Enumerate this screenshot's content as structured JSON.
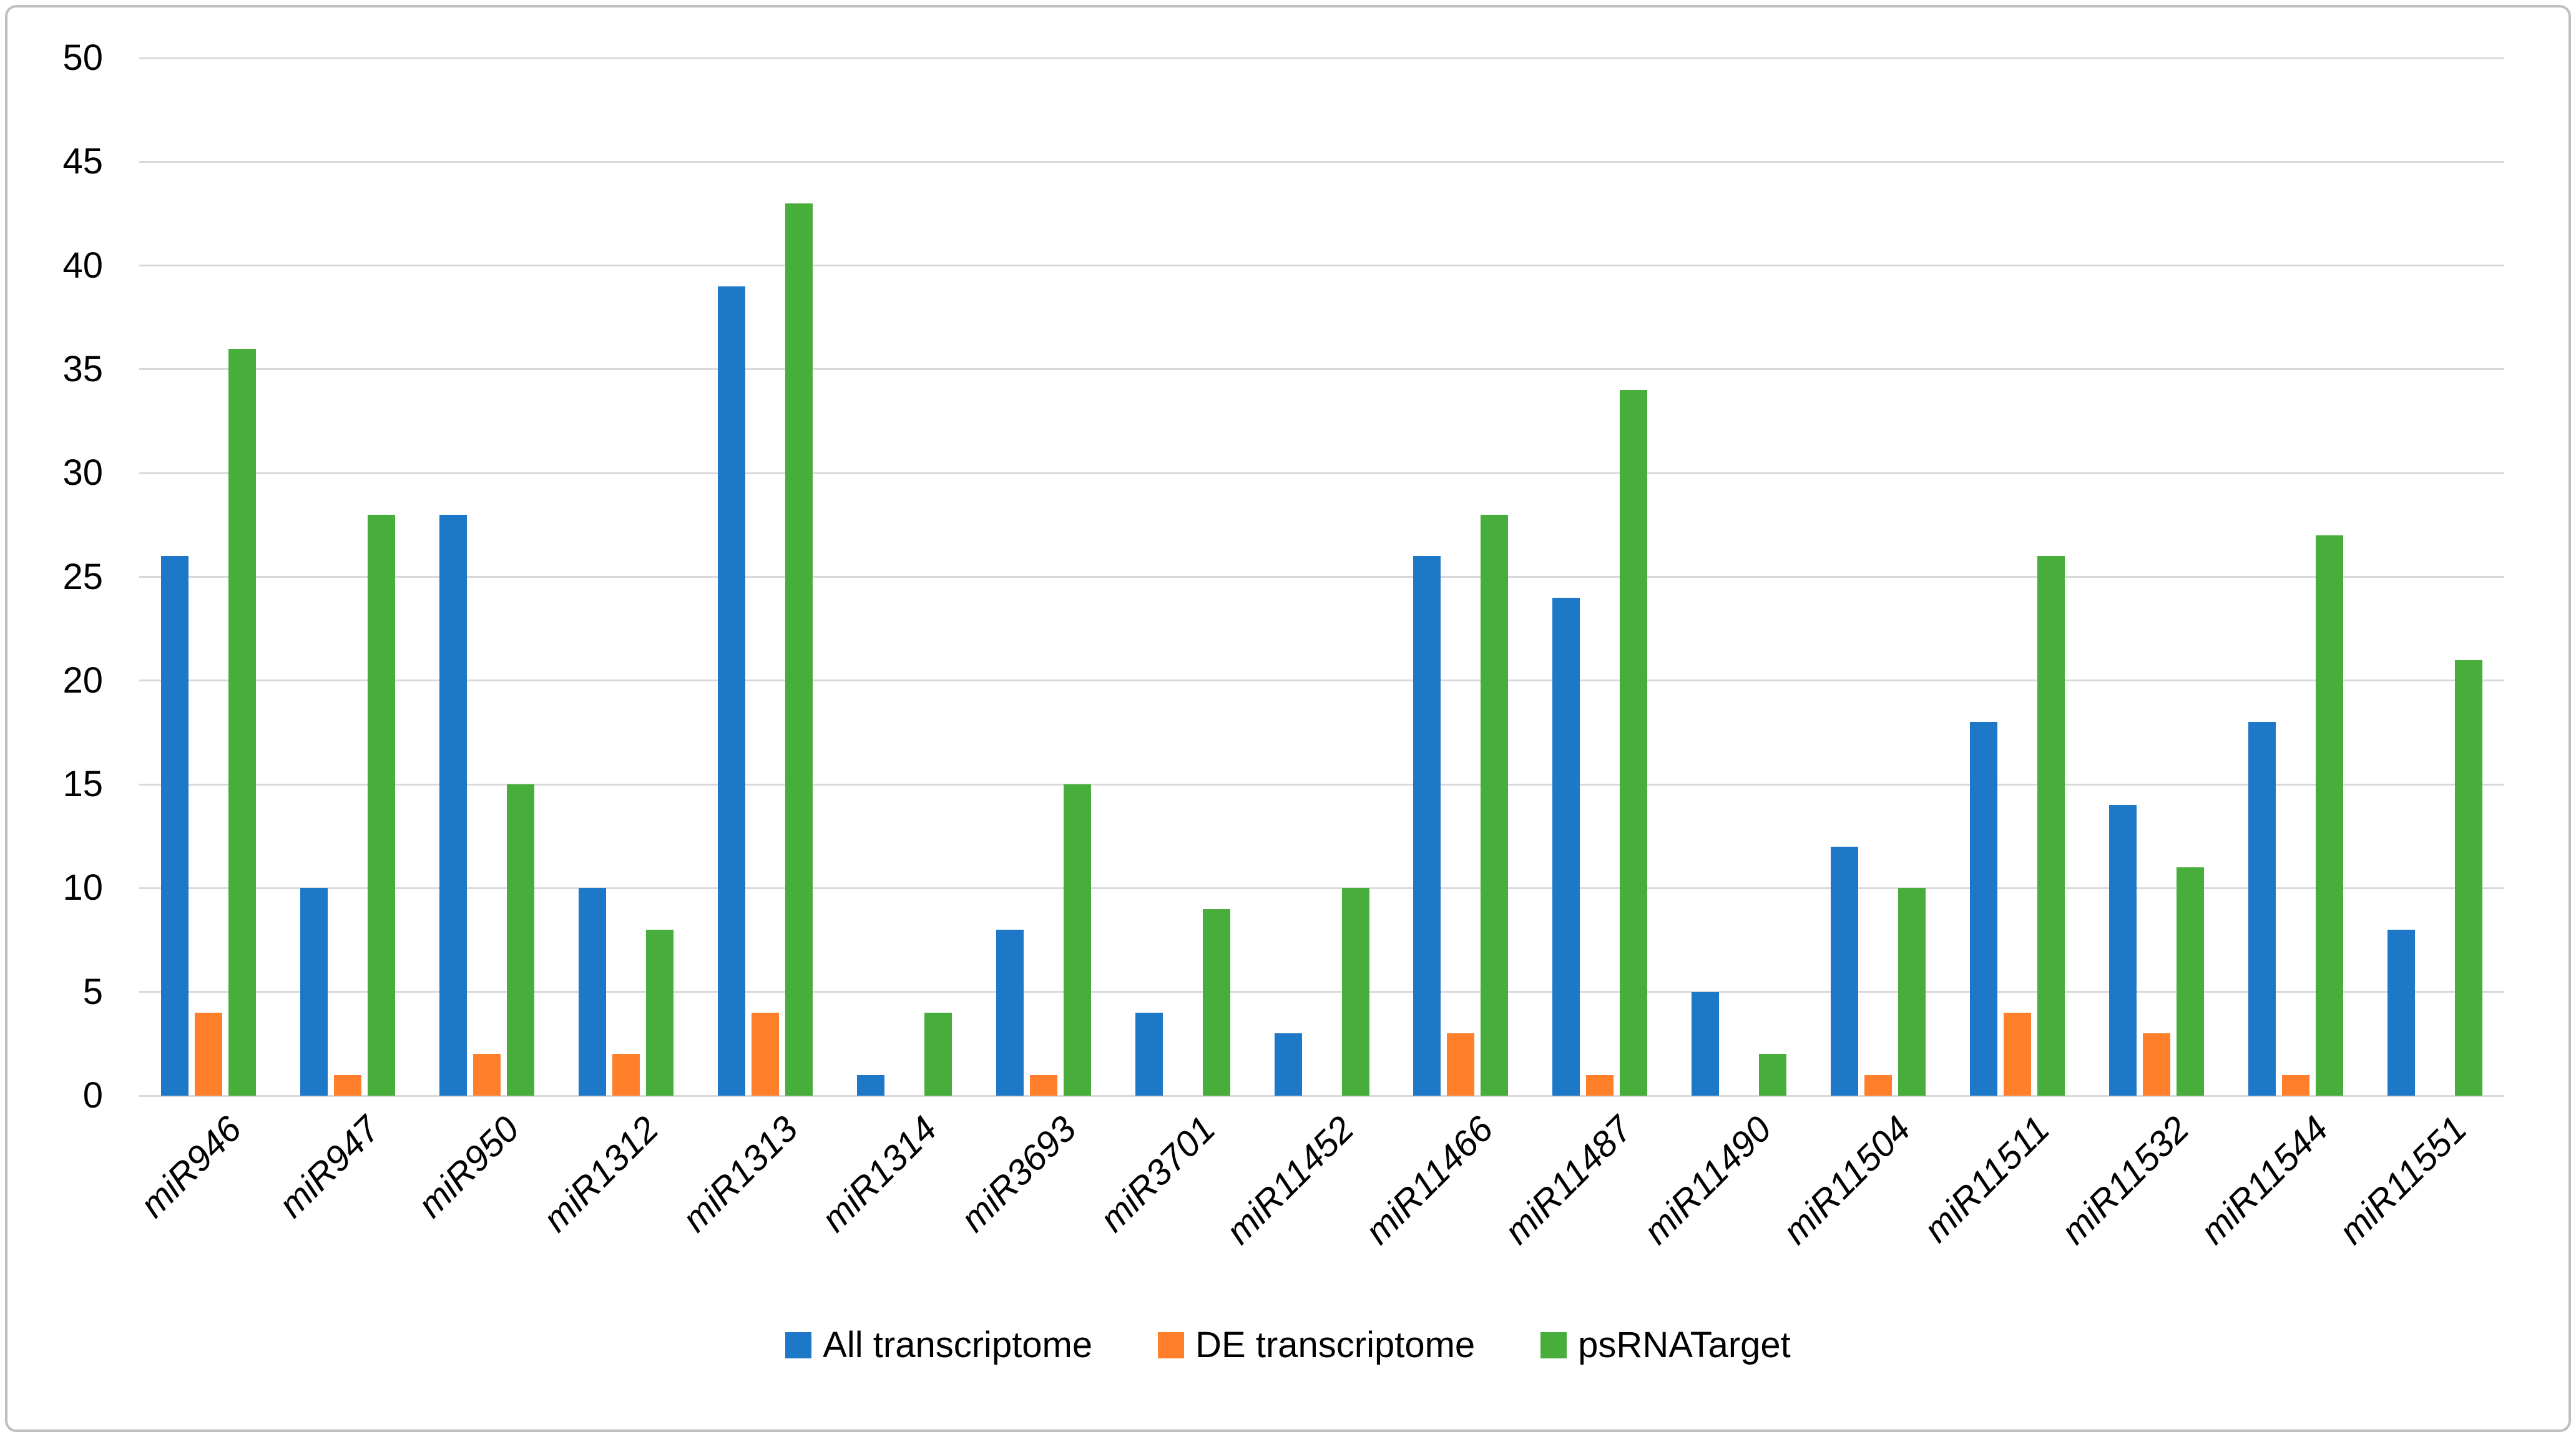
{
  "figure": {
    "background": "#FFFFFF",
    "border_color": "#BFBFBF",
    "gridline_color": "#D9D9D9"
  },
  "chart_data": {
    "type": "bar",
    "title": "",
    "xlabel": "",
    "ylabel": "",
    "ylim": [
      0,
      50
    ],
    "ytick_step": 5,
    "yticks": [
      0,
      5,
      10,
      15,
      20,
      25,
      30,
      35,
      40,
      45,
      50
    ],
    "grid": "horizontal",
    "legend_position": "bottom",
    "categories": [
      "miR946",
      "miR947",
      "miR950",
      "miR1312",
      "miR1313",
      "miR1314",
      "miR3693",
      "miR3701",
      "miR11452",
      "miR11466",
      "miR11487",
      "miR11490",
      "miR11504",
      "miR11511",
      "miR11532",
      "miR11544",
      "miR11551"
    ],
    "series": [
      {
        "name": "All transcriptome",
        "color": "#1E78C8",
        "values": [
          26,
          10,
          28,
          10,
          39,
          1,
          8,
          4,
          3,
          26,
          24,
          5,
          12,
          18,
          14,
          18,
          8
        ]
      },
      {
        "name": "DE transcriptome",
        "color": "#FF7F2B",
        "values": [
          4,
          1,
          2,
          2,
          4,
          0,
          1,
          0,
          0,
          3,
          1,
          0,
          1,
          4,
          3,
          1,
          0
        ]
      },
      {
        "name": "psRNATarget",
        "color": "#47AD3B",
        "values": [
          36,
          28,
          15,
          8,
          43,
          4,
          15,
          9,
          10,
          28,
          34,
          2,
          10,
          26,
          11,
          27,
          21
        ]
      }
    ]
  }
}
